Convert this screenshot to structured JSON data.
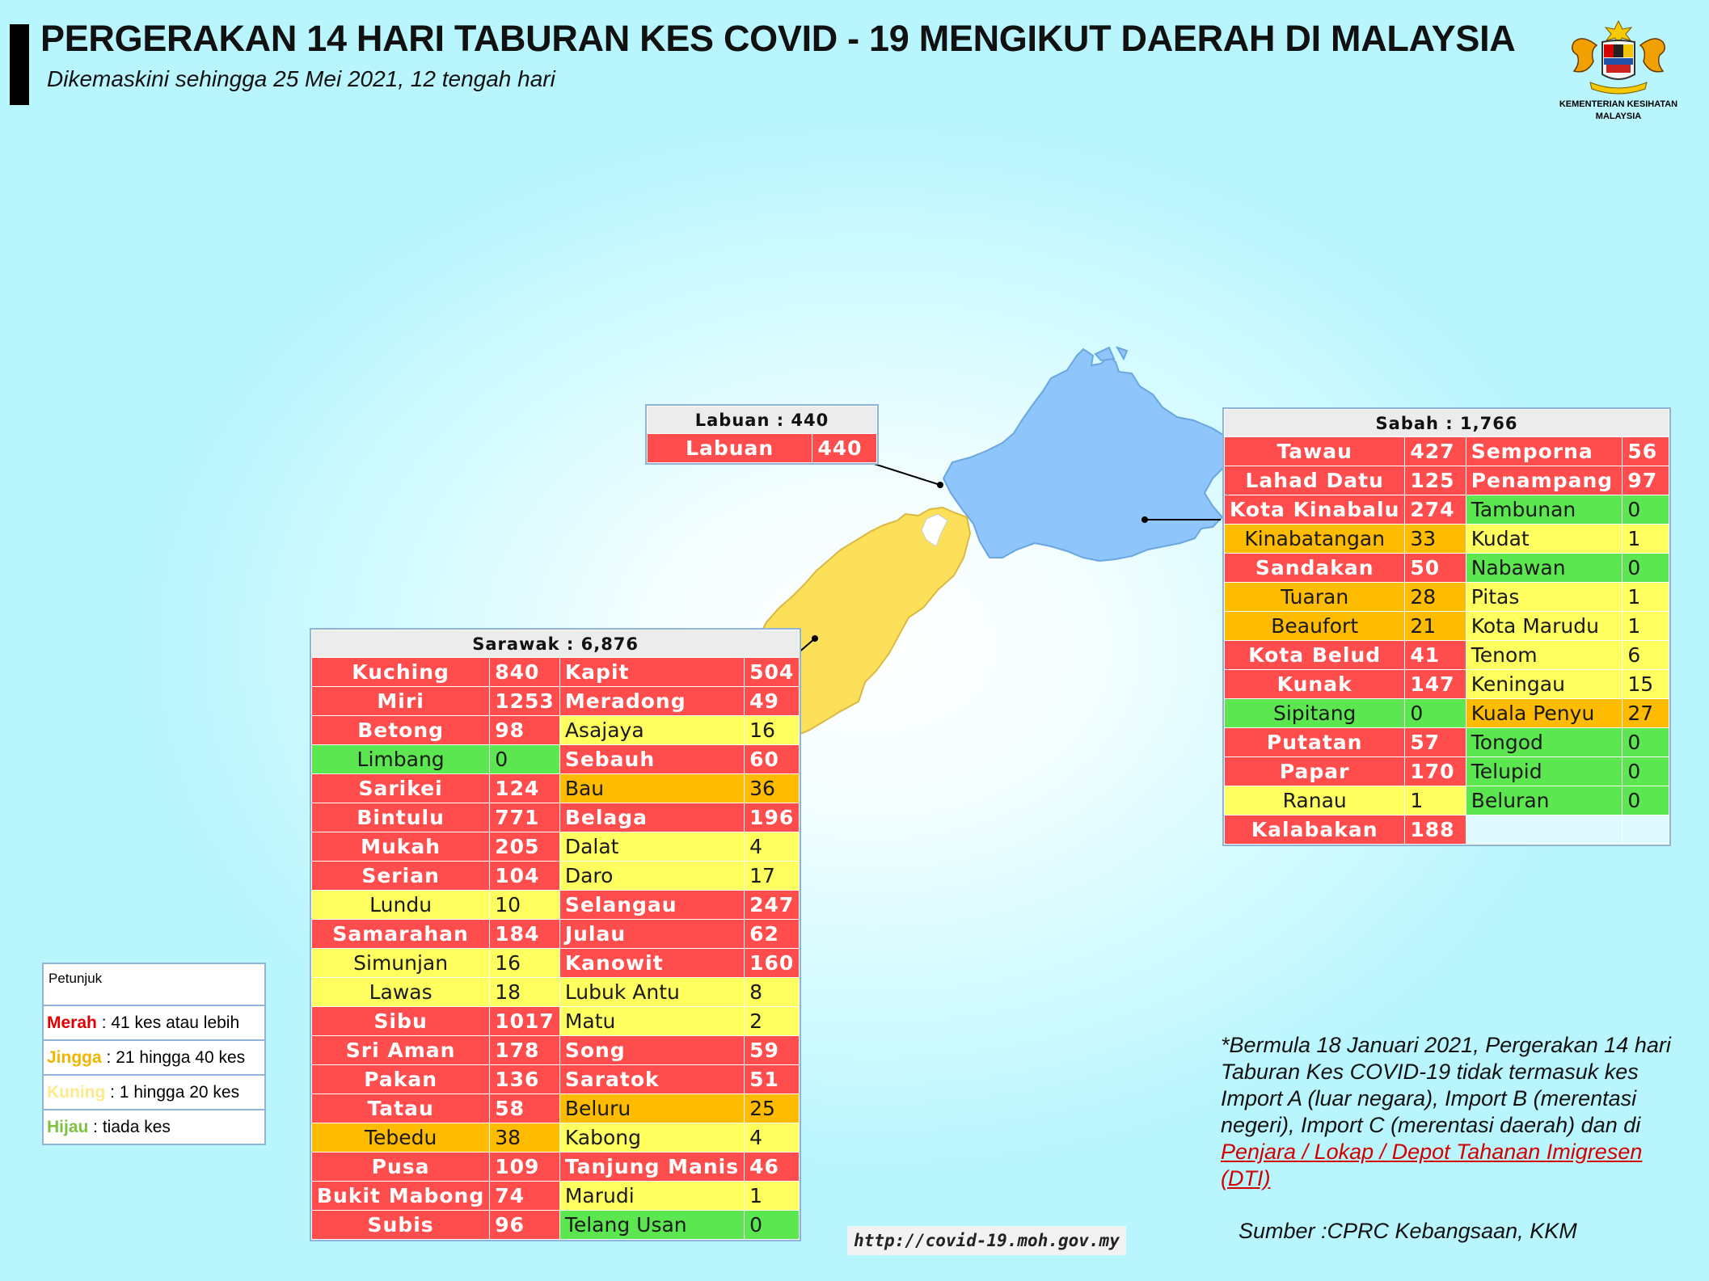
{
  "header": {
    "title": "PERGERAKAN 14 HARI TABURAN KES COVID - 19 MENGIKUT DAERAH DI MALAYSIA",
    "subtitle": "Dikemaskini sehingga 25 Mei 2021, 12 tengah hari",
    "logo_icon": "jata-negara-crest-icon",
    "logo_text_line1": "KEMENTERIAN KESIHATAN",
    "logo_text_line2": "MALAYSIA"
  },
  "colors": {
    "red": "#ff4d4d",
    "orange": "#ffbb00",
    "yellow": "#ffff60",
    "green": "#5ce64f",
    "sabah_map": "#8ec5fa",
    "sarawak_map": "#fde05a"
  },
  "labuan": {
    "title": "Labuan : 440",
    "rows": [
      {
        "name": "Labuan",
        "value": "440",
        "level": "red"
      }
    ]
  },
  "sabah": {
    "title": "Sabah : 1,766",
    "left": [
      {
        "name": "Tawau",
        "value": "427",
        "level": "red"
      },
      {
        "name": "Lahad Datu",
        "value": "125",
        "level": "red"
      },
      {
        "name": "Kota Kinabalu",
        "value": "274",
        "level": "red"
      },
      {
        "name": "Kinabatangan",
        "value": "33",
        "level": "org"
      },
      {
        "name": "Sandakan",
        "value": "50",
        "level": "red"
      },
      {
        "name": "Tuaran",
        "value": "28",
        "level": "org"
      },
      {
        "name": "Beaufort",
        "value": "21",
        "level": "org"
      },
      {
        "name": "Kota Belud",
        "value": "41",
        "level": "red"
      },
      {
        "name": "Kunak",
        "value": "147",
        "level": "red"
      },
      {
        "name": "Sipitang",
        "value": "0",
        "level": "grn"
      },
      {
        "name": "Putatan",
        "value": "57",
        "level": "red"
      },
      {
        "name": "Papar",
        "value": "170",
        "level": "red"
      },
      {
        "name": "Ranau",
        "value": "1",
        "level": "yel"
      },
      {
        "name": "Kalabakan",
        "value": "188",
        "level": "red"
      }
    ],
    "right": [
      {
        "name": "Semporna",
        "value": "56",
        "level": "red"
      },
      {
        "name": "Penampang",
        "value": "97",
        "level": "red"
      },
      {
        "name": "Tambunan",
        "value": "0",
        "level": "grn"
      },
      {
        "name": "Kudat",
        "value": "1",
        "level": "yel"
      },
      {
        "name": "Nabawan",
        "value": "0",
        "level": "grn"
      },
      {
        "name": "Pitas",
        "value": "1",
        "level": "yel"
      },
      {
        "name": "Kota Marudu",
        "value": "1",
        "level": "yel"
      },
      {
        "name": "Tenom",
        "value": "6",
        "level": "yel"
      },
      {
        "name": "Keningau",
        "value": "15",
        "level": "yel"
      },
      {
        "name": "Kuala Penyu",
        "value": "27",
        "level": "org"
      },
      {
        "name": "Tongod",
        "value": "0",
        "level": "grn"
      },
      {
        "name": "Telupid",
        "value": "0",
        "level": "grn"
      },
      {
        "name": "Beluran",
        "value": "0",
        "level": "grn"
      },
      {
        "name": "",
        "value": "",
        "level": "emp"
      }
    ]
  },
  "sarawak": {
    "title": "Sarawak : 6,876",
    "left": [
      {
        "name": "Kuching",
        "value": "840",
        "level": "red"
      },
      {
        "name": "Miri",
        "value": "1253",
        "level": "red"
      },
      {
        "name": "Betong",
        "value": "98",
        "level": "red"
      },
      {
        "name": "Limbang",
        "value": "0",
        "level": "grn"
      },
      {
        "name": "Sarikei",
        "value": "124",
        "level": "red"
      },
      {
        "name": "Bintulu",
        "value": "771",
        "level": "red"
      },
      {
        "name": "Mukah",
        "value": "205",
        "level": "red"
      },
      {
        "name": "Serian",
        "value": "104",
        "level": "red"
      },
      {
        "name": "Lundu",
        "value": "10",
        "level": "yel"
      },
      {
        "name": "Samarahan",
        "value": "184",
        "level": "red"
      },
      {
        "name": "Simunjan",
        "value": "16",
        "level": "yel"
      },
      {
        "name": "Lawas",
        "value": "18",
        "level": "yel"
      },
      {
        "name": "Sibu",
        "value": "1017",
        "level": "red"
      },
      {
        "name": "Sri Aman",
        "value": "178",
        "level": "red"
      },
      {
        "name": "Pakan",
        "value": "136",
        "level": "red"
      },
      {
        "name": "Tatau",
        "value": "58",
        "level": "red"
      },
      {
        "name": "Tebedu",
        "value": "38",
        "level": "org"
      },
      {
        "name": "Pusa",
        "value": "109",
        "level": "red"
      },
      {
        "name": "Bukit Mabong",
        "value": "74",
        "level": "red"
      },
      {
        "name": "Subis",
        "value": "96",
        "level": "red"
      }
    ],
    "right": [
      {
        "name": "Kapit",
        "value": "504",
        "level": "red"
      },
      {
        "name": "Meradong",
        "value": "49",
        "level": "red"
      },
      {
        "name": "Asajaya",
        "value": "16",
        "level": "yel"
      },
      {
        "name": "Sebauh",
        "value": "60",
        "level": "red"
      },
      {
        "name": "Bau",
        "value": "36",
        "level": "org"
      },
      {
        "name": "Belaga",
        "value": "196",
        "level": "red"
      },
      {
        "name": "Dalat",
        "value": "4",
        "level": "yel"
      },
      {
        "name": "Daro",
        "value": "17",
        "level": "yel"
      },
      {
        "name": "Selangau",
        "value": "247",
        "level": "red"
      },
      {
        "name": "Julau",
        "value": "62",
        "level": "red"
      },
      {
        "name": "Kanowit",
        "value": "160",
        "level": "red"
      },
      {
        "name": "Lubuk Antu",
        "value": "8",
        "level": "yel"
      },
      {
        "name": "Matu",
        "value": "2",
        "level": "yel"
      },
      {
        "name": "Song",
        "value": "59",
        "level": "red"
      },
      {
        "name": "Saratok",
        "value": "51",
        "level": "red"
      },
      {
        "name": "Beluru",
        "value": "25",
        "level": "org"
      },
      {
        "name": "Kabong",
        "value": "4",
        "level": "yel"
      },
      {
        "name": "Tanjung Manis",
        "value": "46",
        "level": "red"
      },
      {
        "name": "Marudi",
        "value": "1",
        "level": "yel"
      },
      {
        "name": "Telang Usan",
        "value": "0",
        "level": "grn"
      }
    ]
  },
  "legend": {
    "heading": "Petunjuk",
    "items": [
      {
        "label": "Merah",
        "desc": " : 41 kes atau lebih",
        "color": "#e00000"
      },
      {
        "label": "Jingga",
        "desc": " : 21 hingga 40 kes",
        "color": "#f2b500"
      },
      {
        "label": "Kuning",
        "desc": " : 1 hingga 20 kes",
        "color": "#ffe98a"
      },
      {
        "label": "Hijau",
        "desc": " : tiada kes",
        "color": "#7dc242"
      }
    ]
  },
  "note": {
    "text": "*Bermula 18 Januari 2021, Pergerakan 14 hari Taburan Kes COVID-19 tidak termasuk kes Import A (luar negara), Import B (merentasi negeri), Import C (merentasi daerah) dan di ",
    "link_text": "Penjara / Lokap / Depot Tahanan Imigresen (DTI)"
  },
  "source": "Sumber :CPRC Kebangsaan,  KKM",
  "url": "http://covid-19.moh.gov.my"
}
